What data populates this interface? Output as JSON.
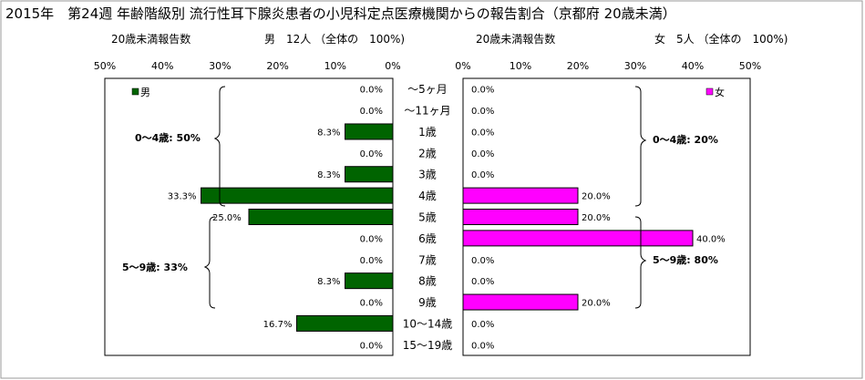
{
  "title": "2015年　第24週 年齢階級別 流行性耳下腺炎患者の小児科定点医療機関からの報告割合（京都府 20歳未満）",
  "male_panel": {
    "count_label": "20歳未満報告数",
    "summary": "男　12人 （全体の　100%)",
    "legend": "男",
    "group_labels": [
      "0～4歳: 50%",
      "5～9歳: 33%"
    ]
  },
  "female_panel": {
    "count_label": "20歳未満報告数",
    "summary": "女　5人 （全体の　100%)",
    "legend": "女",
    "group_labels": [
      "0～4歳: 20%",
      "5～9歳: 80%"
    ]
  },
  "colors": {
    "male": "#006400",
    "female": "#ff00ff"
  },
  "chart_data": {
    "type": "bar",
    "orientation": "horizontal",
    "categories": [
      "～5ヶ月",
      "～11ヶ月",
      "1歳",
      "2歳",
      "3歳",
      "4歳",
      "5歳",
      "6歳",
      "7歳",
      "8歳",
      "9歳",
      "10～14歳",
      "15～19歳"
    ],
    "x_tick_labels": [
      "0%",
      "10%",
      "20%",
      "30%",
      "40%",
      "50%"
    ],
    "xlim": [
      0,
      50
    ],
    "series": [
      {
        "name": "男",
        "values": [
          0.0,
          0.0,
          8.3,
          0.0,
          8.3,
          33.3,
          25.0,
          0.0,
          0.0,
          8.3,
          0.0,
          16.7,
          0.0
        ],
        "labels": [
          "0.0%",
          "0.0%",
          "8.3%",
          "0.0%",
          "8.3%",
          "33.3%",
          "25.0%",
          "0.0%",
          "0.0%",
          "8.3%",
          "0.0%",
          "16.7%",
          "0.0%"
        ]
      },
      {
        "name": "女",
        "values": [
          0.0,
          0.0,
          0.0,
          0.0,
          0.0,
          20.0,
          20.0,
          40.0,
          0.0,
          0.0,
          20.0,
          0.0,
          0.0
        ],
        "labels": [
          "0.0%",
          "0.0%",
          "0.0%",
          "0.0%",
          "0.0%",
          "20.0%",
          "20.0%",
          "40.0%",
          "0.0%",
          "0.0%",
          "20.0%",
          "0.0%",
          "0.0%"
        ]
      }
    ]
  }
}
